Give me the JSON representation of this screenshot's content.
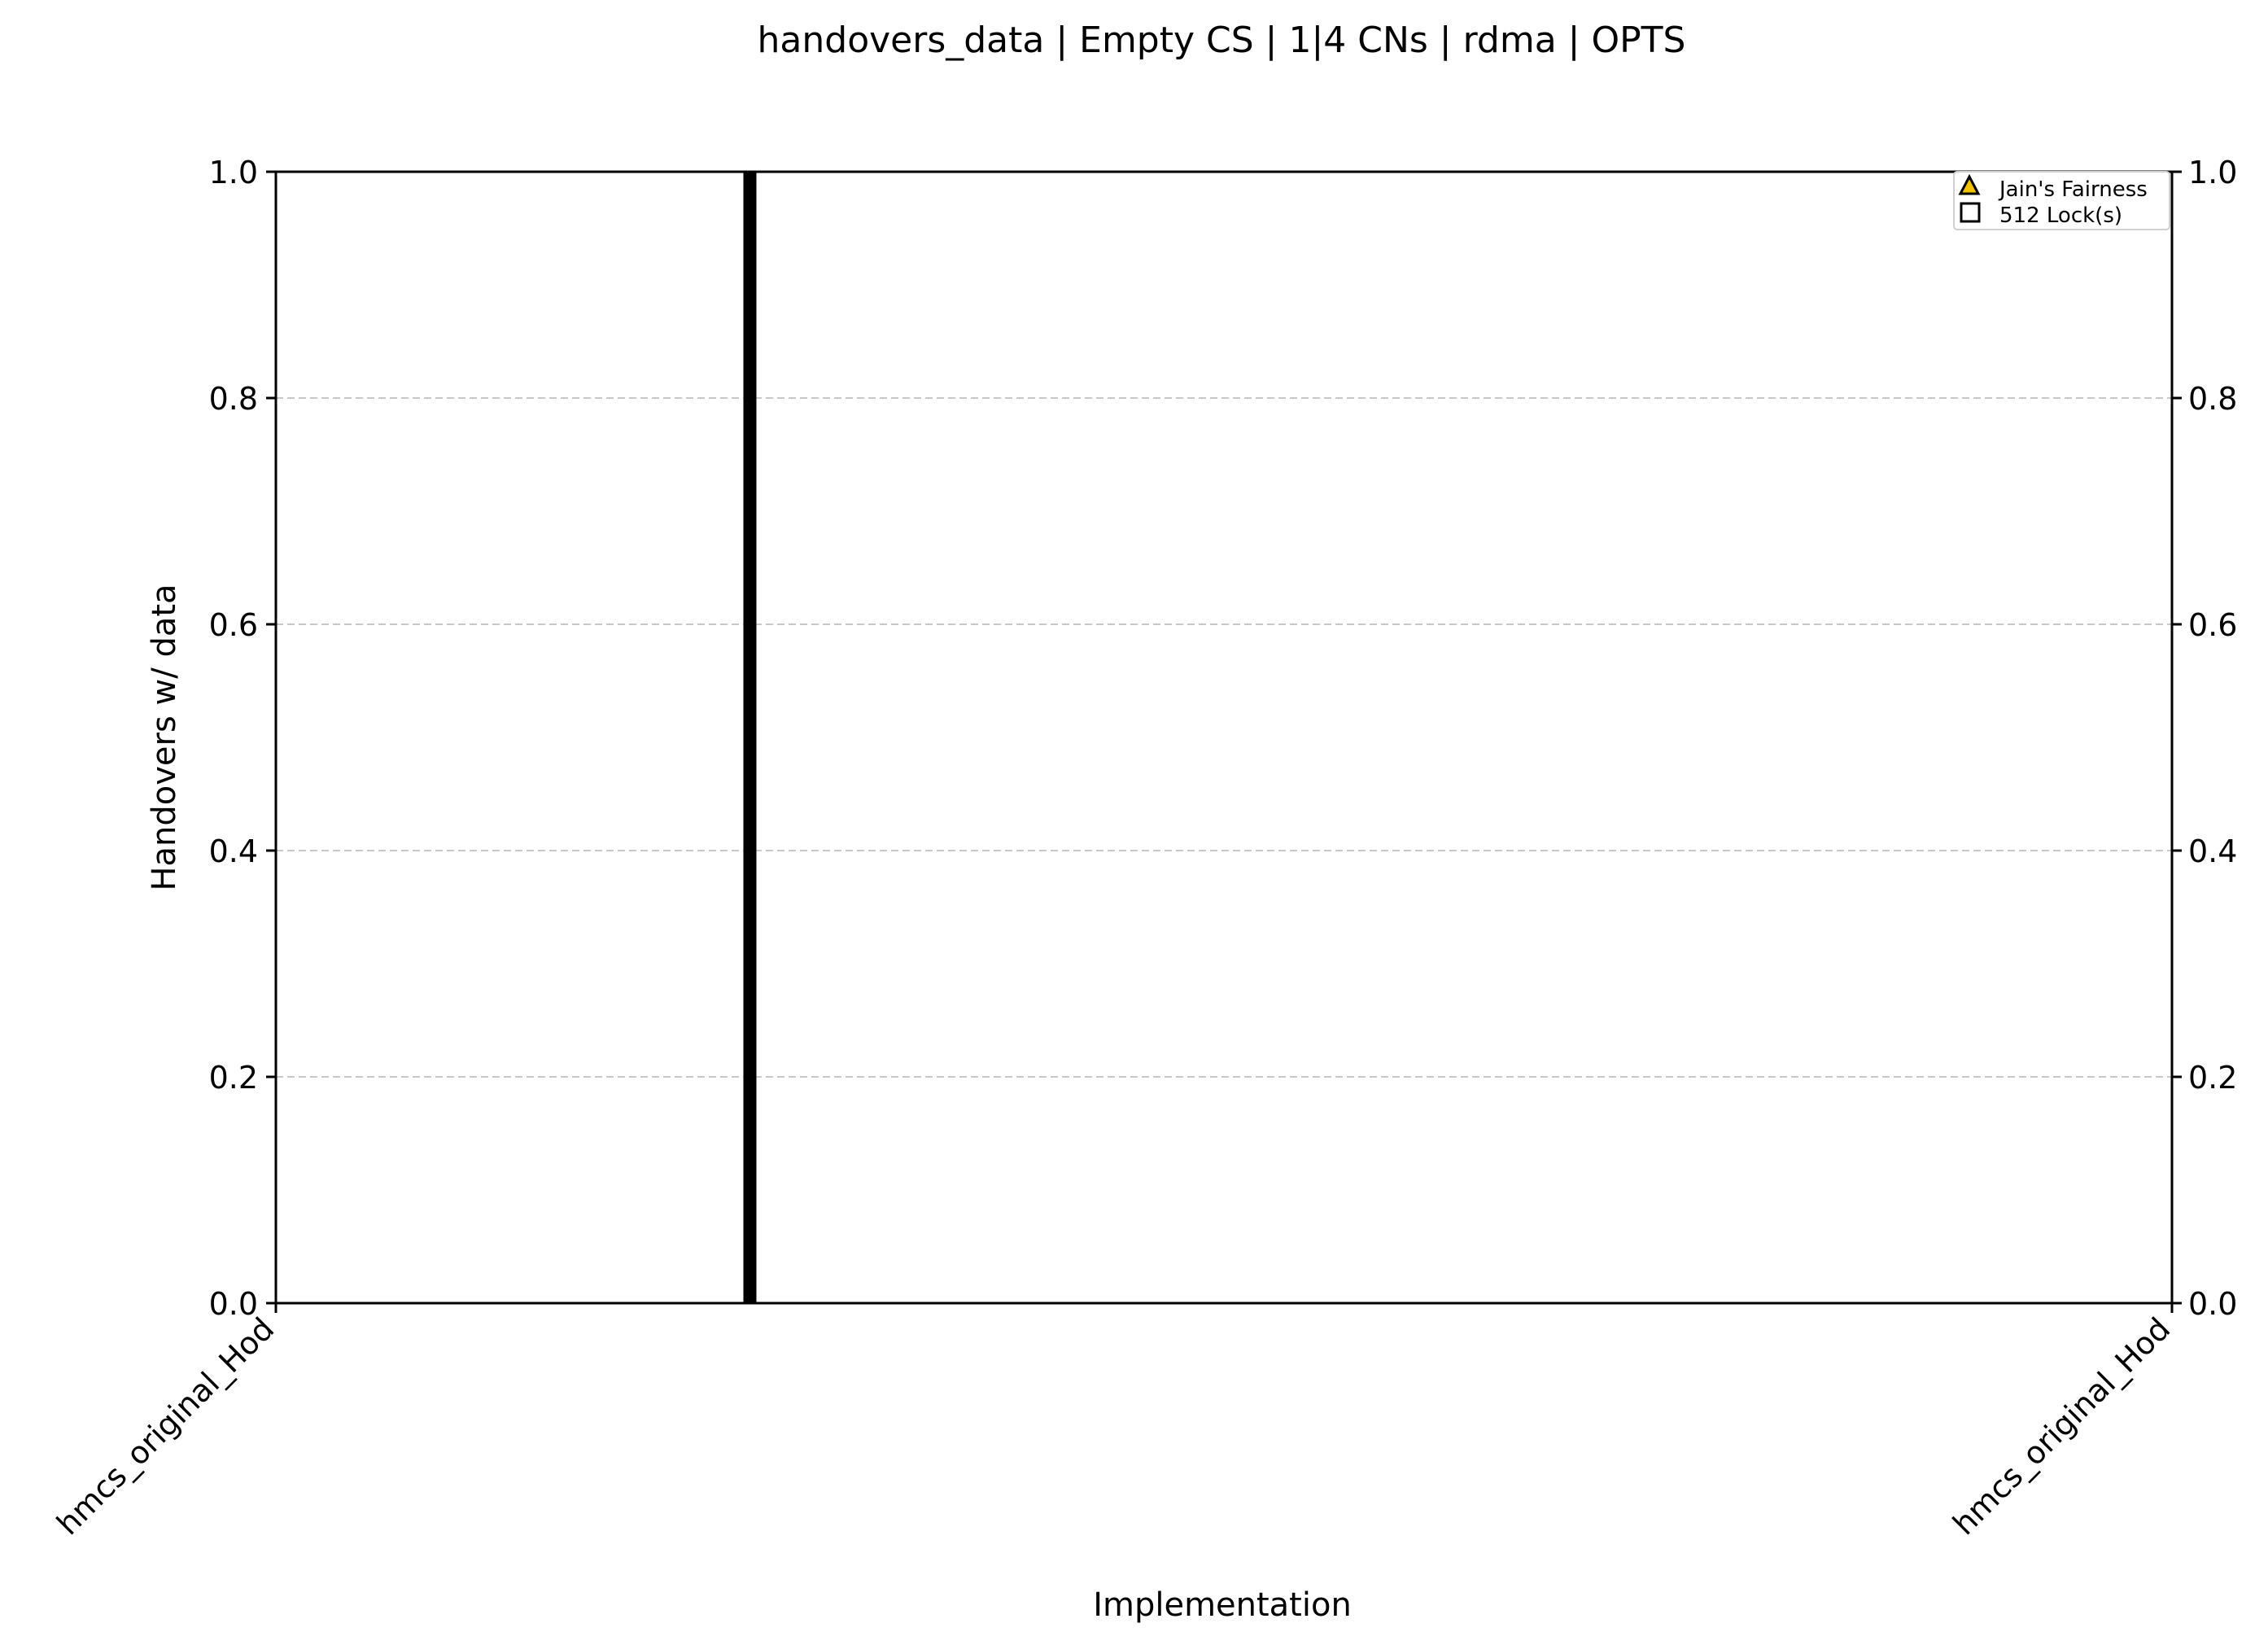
{
  "chart_data": {
    "type": "bar",
    "title": "handovers_data | Empty CS | 1|4 CNs | rdma | OPTS",
    "xlabel": "Implementation",
    "ylabel": "Handovers w/ data",
    "categories": [
      "hmcs_original_Hod",
      "hmcs_original_Hod"
    ],
    "x_range": [
      0,
      1
    ],
    "ylim": [
      0,
      1
    ],
    "yticks": [
      "0.0",
      "0.2",
      "0.4",
      "0.6",
      "0.8",
      "1.0"
    ],
    "right_yticks": [
      "0.0",
      "0.2",
      "0.4",
      "0.6",
      "0.8",
      "1.0"
    ],
    "grid": "y, dashed",
    "legend": {
      "placement": "top-right",
      "entries": [
        {
          "label": "Jain's Fairness",
          "marker": "triangle",
          "color": "#f2c200"
        },
        {
          "label": "512 Lock(s)",
          "marker": "square",
          "color": "#ffffff"
        }
      ]
    },
    "series": [
      {
        "values": [
          {
            "x": 0.25,
            "y": 1.0
          }
        ],
        "color": "#000000"
      }
    ]
  }
}
